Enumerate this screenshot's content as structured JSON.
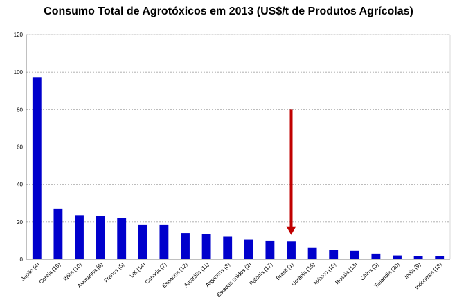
{
  "chart_data": {
    "type": "bar",
    "title": "Consumo Total de Agrotóxicos em 2013 (US$/t de Produtos Agrícolas)",
    "xlabel": "",
    "ylabel": "",
    "categories": [
      "Japão (4)",
      "Coreia (19)",
      "Itália (10)",
      "Alemanha (6)",
      "França (5)",
      "UK (14)",
      "Canada (7)",
      "Espanha (12)",
      "Austrália (11)",
      "Argentina (8)",
      "Estados unidos (2)",
      "Polônia (17)",
      "Brasil (1)",
      "Ucrânia (15)",
      "México (16)",
      "Rússia (13)",
      "China (3)",
      "Tailandia (20)",
      "India (9)",
      "Indonesia (18)"
    ],
    "values": [
      97,
      27,
      23.5,
      23,
      22,
      18.5,
      18.5,
      14,
      13.5,
      12,
      10.5,
      10,
      9.5,
      6,
      5,
      4.5,
      3,
      2,
      1.5,
      1.5
    ],
    "yticks": [
      "0",
      "20",
      "40",
      "60",
      "80",
      "100",
      "120"
    ],
    "ylim": [
      0,
      120
    ],
    "grid": true,
    "bar_color": "#0000cc",
    "annotation": {
      "type": "arrow",
      "color": "#c00000",
      "target_category": "Brasil (1)",
      "from_value": 80,
      "to_value": 13
    }
  }
}
